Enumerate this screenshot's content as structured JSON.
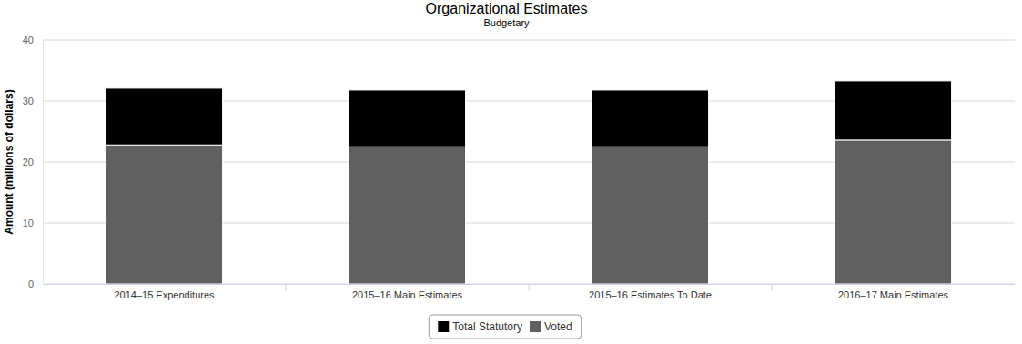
{
  "chart_data": {
    "type": "bar",
    "title": "Organizational Estimates",
    "subtitle": "Budgetary",
    "y_label": "Amount (millions of dollars)",
    "categories": [
      "2014–15 Expenditures",
      "2015–16 Main Estimates",
      "2015–16 Estimates To Date",
      "2016–17 Main Estimates"
    ],
    "series": [
      {
        "name": "Total Statutory",
        "color": "#000000",
        "values": [
          9.3,
          9.3,
          9.3,
          9.7
        ]
      },
      {
        "name": "Voted",
        "color": "#606060",
        "values": [
          22.8,
          22.5,
          22.5,
          23.6
        ]
      }
    ],
    "stacked": true,
    "ylim": [
      0,
      40
    ],
    "yticks": [
      0,
      10,
      20,
      30,
      40
    ],
    "grid": true,
    "legend": "bottom"
  }
}
